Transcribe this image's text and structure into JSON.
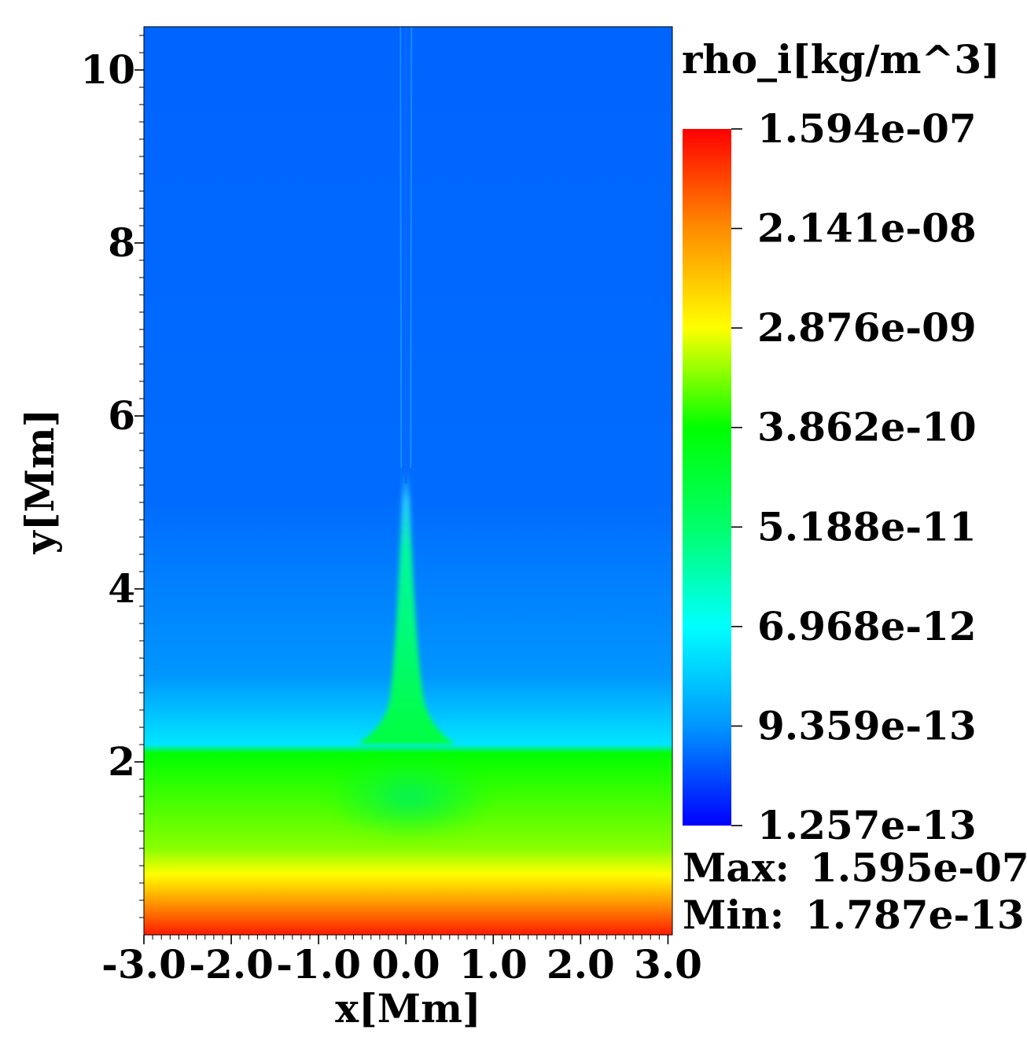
{
  "chart_data": {
    "type": "heatmap",
    "variable_label": "rho_i[kg/m^3]",
    "xlabel": "x[Mm]",
    "ylabel": "y[Mm]",
    "xlim": [
      -3.0,
      3.05
    ],
    "ylim": [
      0,
      10.5
    ],
    "x_ticks": [
      -3,
      -2,
      -1,
      0,
      1,
      2,
      3
    ],
    "x_tick_labels": [
      "-3.0",
      "-2.0",
      "-1.0",
      "0.0",
      "1.0",
      "2.0",
      "3.0"
    ],
    "y_ticks": [
      2,
      4,
      6,
      8,
      10
    ],
    "y_tick_labels": [
      "2",
      "4",
      "6",
      "8",
      "10"
    ],
    "colorbar": {
      "scale": "log",
      "tick_labels": [
        "1.594e-07",
        "2.141e-08",
        "2.876e-09",
        "3.862e-10",
        "5.188e-11",
        "6.968e-12",
        "9.359e-13",
        "1.257e-13"
      ],
      "tick_values": [
        1.594e-07,
        2.141e-08,
        2.876e-09,
        3.862e-10,
        5.188e-11,
        6.968e-12,
        9.359e-13,
        1.257e-13
      ],
      "colors": [
        "#ff0000",
        "#ff8c00",
        "#ffff00",
        "#00ff00",
        "#00ff6a",
        "#00ffff",
        "#0096ff",
        "#0000ff"
      ]
    },
    "stats": {
      "max_label": "Max:",
      "max_value": "1.595e-07",
      "min_label": "Min:",
      "min_value": "1.787e-13"
    },
    "structure": {
      "background_y_above_transition": [
        [
          10.5,
          "#0064ff"
        ],
        [
          5.0,
          "#006cff"
        ],
        [
          3.0,
          "#0096ff"
        ],
        [
          2.2,
          "#00e6ff"
        ],
        [
          2.1,
          "#00ff00"
        ],
        [
          1.0,
          "#88ff00"
        ],
        [
          0.7,
          "#ffff00"
        ],
        [
          0.3,
          "#ff8000"
        ],
        [
          0.0,
          "#ff1a00"
        ]
      ],
      "jet_center_x": 0.0,
      "jet_top_y": 5.4,
      "jet_base_y": 2.2
    }
  }
}
